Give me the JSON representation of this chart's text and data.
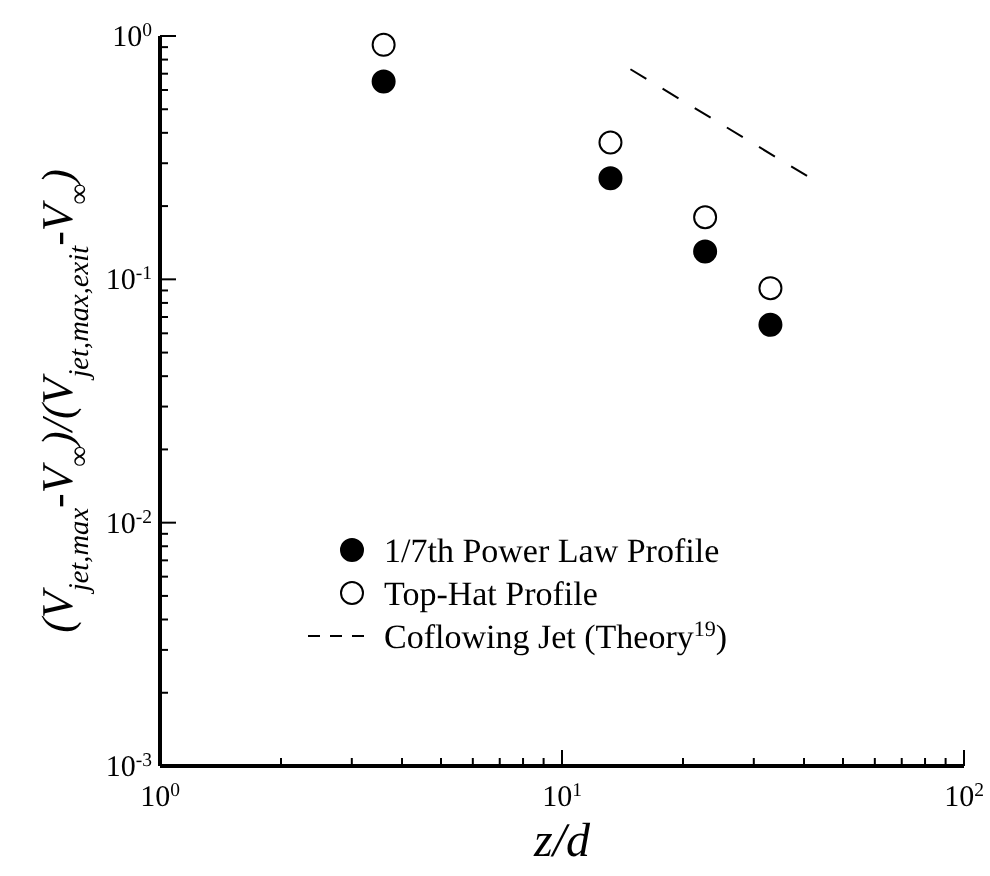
{
  "chart_data": {
    "type": "scatter",
    "xlabel": "z/d",
    "ylabel": "(V$_{jet,max}$-V$_{∞}$)/(V$_{jet,max,exit}$-V$_{∞}$)",
    "log": "xy",
    "xlim": [
      1,
      100
    ],
    "ylim": [
      0.001,
      1
    ],
    "xticks": [
      {
        "value": 1,
        "label": "10$^{0}$"
      },
      {
        "value": 2,
        "label": null
      },
      {
        "value": 3,
        "label": null
      },
      {
        "value": 4,
        "label": null
      },
      {
        "value": 5,
        "label": null
      },
      {
        "value": 6,
        "label": null
      },
      {
        "value": 7,
        "label": null
      },
      {
        "value": 8,
        "label": null
      },
      {
        "value": 9,
        "label": null
      },
      {
        "value": 10,
        "label": "10$^{1}$"
      },
      {
        "value": 20,
        "label": null
      },
      {
        "value": 30,
        "label": null
      },
      {
        "value": 40,
        "label": null
      },
      {
        "value": 50,
        "label": null
      },
      {
        "value": 60,
        "label": null
      },
      {
        "value": 70,
        "label": null
      },
      {
        "value": 80,
        "label": null
      },
      {
        "value": 90,
        "label": null
      },
      {
        "value": 100,
        "label": "10$^{2}$"
      }
    ],
    "yticks": [
      {
        "value": 0.001,
        "label": "10$^{-3}$"
      },
      {
        "value": 0.002,
        "label": null
      },
      {
        "value": 0.003,
        "label": null
      },
      {
        "value": 0.004,
        "label": null
      },
      {
        "value": 0.005,
        "label": null
      },
      {
        "value": 0.006,
        "label": null
      },
      {
        "value": 0.007,
        "label": null
      },
      {
        "value": 0.008,
        "label": null
      },
      {
        "value": 0.009,
        "label": null
      },
      {
        "value": 0.01,
        "label": "10$^{-2}$"
      },
      {
        "value": 0.02,
        "label": null
      },
      {
        "value": 0.03,
        "label": null
      },
      {
        "value": 0.04,
        "label": null
      },
      {
        "value": 0.05,
        "label": null
      },
      {
        "value": 0.06,
        "label": null
      },
      {
        "value": 0.07,
        "label": null
      },
      {
        "value": 0.08,
        "label": null
      },
      {
        "value": 0.09,
        "label": null
      },
      {
        "value": 0.1,
        "label": "10$^{-1}$"
      },
      {
        "value": 0.2,
        "label": null
      },
      {
        "value": 0.3,
        "label": null
      },
      {
        "value": 0.4,
        "label": null
      },
      {
        "value": 0.5,
        "label": null
      },
      {
        "value": 0.6,
        "label": null
      },
      {
        "value": 0.7,
        "label": null
      },
      {
        "value": 0.8,
        "label": null
      },
      {
        "value": 0.9,
        "label": null
      },
      {
        "value": 1,
        "label": "10$^{0}$"
      }
    ],
    "grid": false,
    "legend": "bottom",
    "marker": "circle",
    "series": [
      {
        "name": "1/7th Power Law Profile",
        "color": "#000000",
        "x": [
          3.6,
          13.2,
          22.7,
          33
        ],
        "values": [
          0.65,
          0.26,
          0.13,
          0.065
        ]
      },
      {
        "name": "Top-Hat Profile",
        "color": "#ffffff",
        "x": [
          3.6,
          13.2,
          22.7,
          33
        ],
        "values": [
          0.92,
          0.365,
          0.18,
          0.092
        ]
      },
      {
        "name": "Coflowing Jet (Theory$^{19}$)",
        "type": "line",
        "color": "#000000",
        "marker": "none",
        "line_style": "dashed",
        "x": [
          14.8,
          40.7
        ],
        "values": [
          0.73,
          0.266
        ]
      }
    ]
  }
}
